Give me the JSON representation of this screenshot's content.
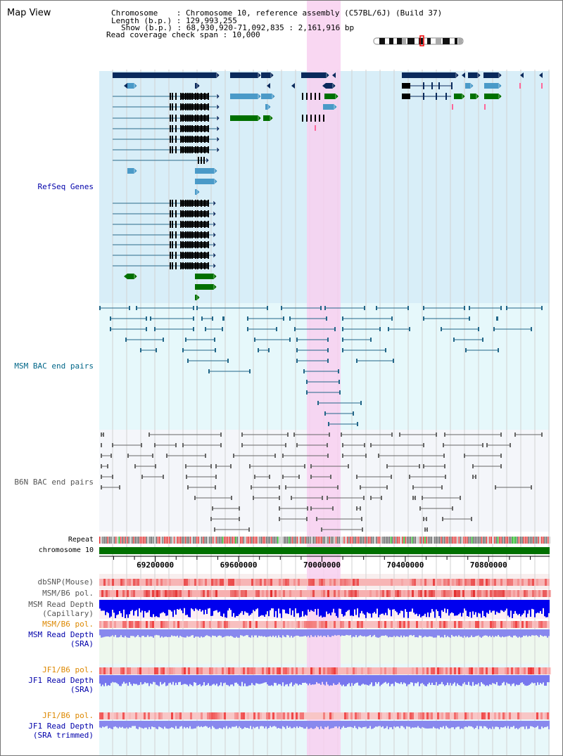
{
  "page_title": "Map View",
  "info": {
    "chromosome_label": "Chromosome",
    "chromosome_value": "Chromosome 10, reference assembly (C57BL/6J) (Build 37)",
    "length_label": "Length (b.p.)",
    "length_value": "129,993,255",
    "show_label": "Show (b.p.)",
    "show_value": "68,930,920-71,092,835 : 2,161,916 bp",
    "coverage_label": "Read coverage check span",
    "coverage_value": "10,000"
  },
  "tracks": {
    "refseq": "RefSeq Genes",
    "msm_bac": "MSM BAC end pairs",
    "b6n_bac": "B6N BAC end pairs",
    "repeat": "Repeat",
    "chromosome": "chromosome 10",
    "dbsnp": "dbSNP(Mouse)",
    "msm_b6_pol": "MSM/B6 pol.",
    "msm_depth_1": "MSM Read Depth",
    "msm_depth_2": "(Capillary)",
    "msm_b6_pol2": "MSM/B6 pol.",
    "msm_sra_1": "MSM Read Depth",
    "msm_sra_2": "(SRA)",
    "jf1_b6_pol": "JF1/B6 pol.",
    "jf1_depth_1": "JF1 Read Depth",
    "jf1_depth_2": "(SRA)",
    "jf1_b6_pol2": "JF1/B6 pol.",
    "jf1_trim_1": "JF1 Read Depth",
    "jf1_trim_2": "(SRA trimmed)"
  },
  "axis": {
    "ticks": [
      69200000,
      69600000,
      70000000,
      70400000,
      70800000
    ],
    "range": [
      68930920,
      71092835
    ]
  },
  "colors": {
    "refseq_bg": "#d8eef8",
    "highlight": "#f8d0f0",
    "gene_navy": "#0a2a5c",
    "gene_blue": "#4a9ac8",
    "gene_green": "#007000",
    "chromosome": "#007000",
    "snp": "#ee5555",
    "depth_dark": "#0000ee",
    "depth_light": "#8888ee"
  }
}
